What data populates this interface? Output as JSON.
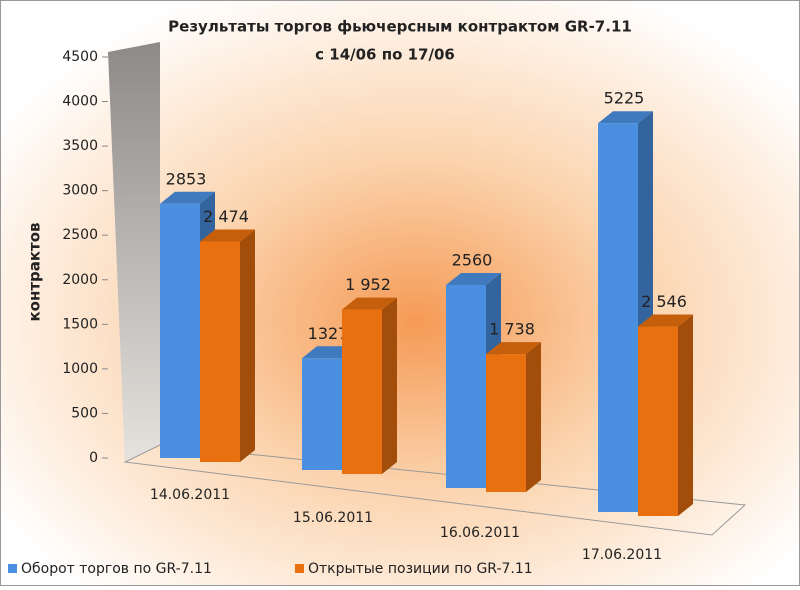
{
  "chart_data": {
    "type": "bar3d",
    "title": "Результаты торгов фьючерсным контрактом GR-7.11",
    "subtitle": "с  14/06 по 17/06",
    "y_label": "контрактов",
    "categories": [
      "14.06.2011",
      "15.06.2011",
      "16.06.2011",
      "17.06.2011"
    ],
    "series": [
      {
        "name": "Оборот торгов по GR-7.11",
        "color": "#4a8fe0",
        "values": [
          2853,
          1327,
          2560,
          5225
        ],
        "value_labels": [
          "2853",
          "1327",
          "2560",
          "5225"
        ]
      },
      {
        "name": "Открытые позиции по GR-7.11",
        "color": "#e8700e",
        "values": [
          2474,
          1952,
          1738,
          2546
        ],
        "value_labels": [
          "2 474",
          "1 952",
          "1 738",
          "2 546"
        ]
      }
    ],
    "ylim": [
      0,
      4500
    ],
    "yticks": [
      0,
      500,
      1000,
      1500,
      2000,
      2500,
      3000,
      3500,
      4000,
      4500
    ],
    "legend": "bottom-left"
  }
}
